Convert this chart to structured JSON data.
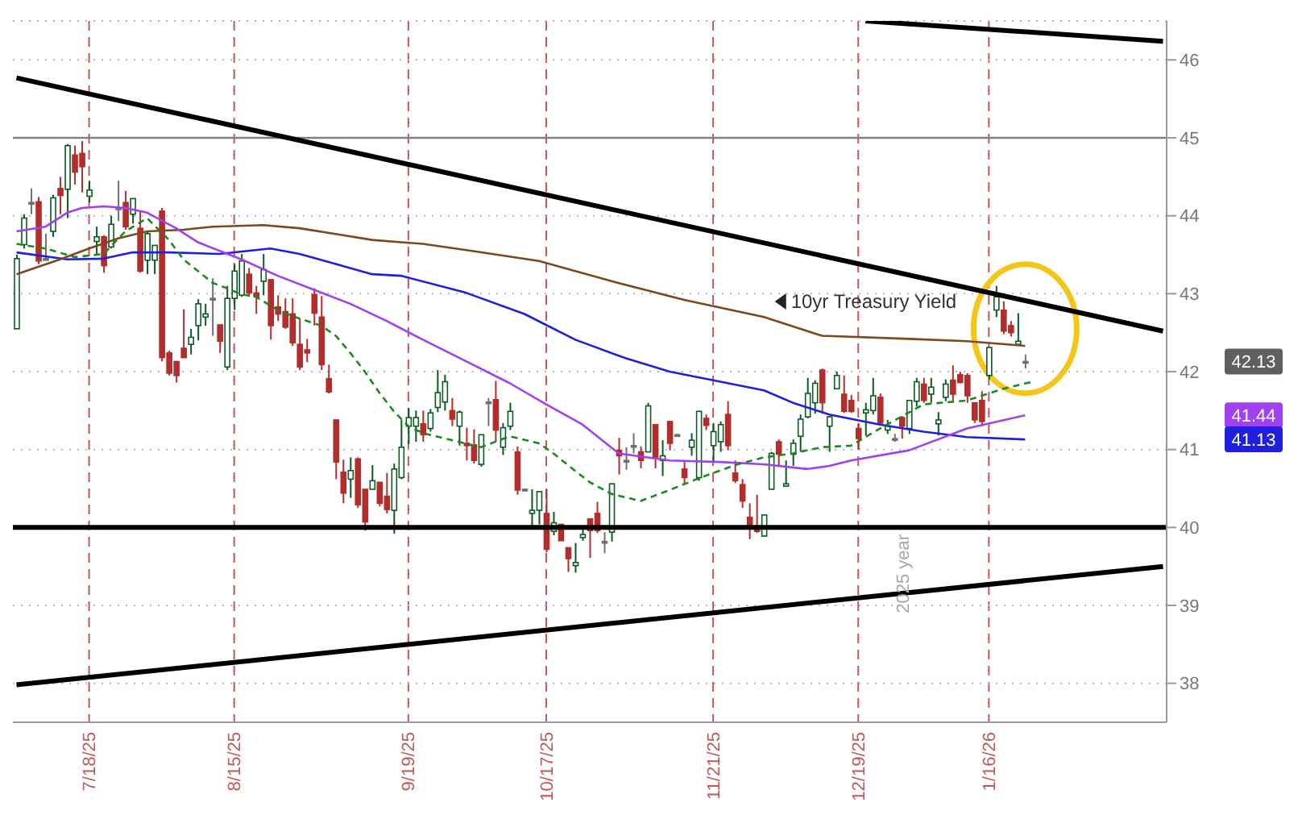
{
  "chart_data": {
    "type": "candlestick",
    "categories": [
      null,
      null,
      null,
      null,
      null,
      null,
      null,
      null,
      null,
      null,
      "7/18/25",
      null,
      null,
      null,
      null,
      null,
      null,
      null,
      null,
      null,
      null,
      null,
      null,
      null,
      null,
      null,
      null,
      null,
      null,
      null,
      "8/15/25",
      null,
      null,
      null,
      null,
      null,
      null,
      null,
      null,
      null,
      null,
      null,
      null,
      null,
      null,
      null,
      null,
      null,
      null,
      null,
      null,
      null,
      null,
      null,
      "9/19/25",
      null,
      null,
      null,
      null,
      null,
      null,
      null,
      null,
      null,
      null,
      null,
      null,
      null,
      null,
      null,
      null,
      null,
      null,
      "10/17/25",
      null,
      null,
      null,
      null,
      null,
      null,
      null,
      null,
      null,
      null,
      null,
      null,
      null,
      null,
      null,
      null,
      null,
      null,
      null,
      null,
      null,
      null,
      "11/21/25",
      null,
      null,
      null,
      null,
      null,
      null,
      null,
      null,
      null,
      null,
      null,
      null,
      null,
      null,
      null,
      null,
      null,
      null,
      null,
      "12/19/25",
      null,
      null,
      null,
      null,
      null,
      null,
      null,
      null,
      null,
      null,
      null,
      null,
      null,
      null,
      null,
      null,
      null,
      "1/16/26",
      null,
      null,
      null,
      null,
      null,
      null,
      null,
      null,
      null,
      null,
      null,
      null,
      null,
      null,
      null,
      null,
      null,
      null,
      null,
      null,
      null,
      null,
      null,
      null
    ],
    "ohlc": [
      [
        42.55,
        43.5,
        42.55,
        43.45
      ],
      [
        43.63,
        44.02,
        43.58,
        43.97
      ],
      [
        44.17,
        44.35,
        44.02,
        44.17
      ],
      [
        44.18,
        44.24,
        43.38,
        43.42
      ],
      [
        43.45,
        43.77,
        43.44,
        43.45
      ],
      [
        43.8,
        44.27,
        43.73,
        44.23
      ],
      [
        44.35,
        44.5,
        44.02,
        44.26
      ],
      [
        44.34,
        44.92,
        43.97,
        44.9
      ],
      [
        44.78,
        44.9,
        44.4,
        44.56
      ],
      [
        44.8,
        44.96,
        44.3,
        44.63
      ],
      [
        44.25,
        44.45,
        44.17,
        44.33
      ],
      [
        43.67,
        43.86,
        43.51,
        43.73
      ],
      [
        43.73,
        43.75,
        43.27,
        43.36
      ],
      [
        43.6,
        44.0,
        43.58,
        43.89
      ],
      [
        44.1,
        44.45,
        43.93,
        44.1
      ],
      [
        44.17,
        44.32,
        43.82,
        43.86
      ],
      [
        44.02,
        44.22,
        43.9,
        44.22
      ],
      [
        43.84,
        44.05,
        43.27,
        43.29
      ],
      [
        43.43,
        43.8,
        43.25,
        43.77
      ],
      [
        43.43,
        43.62,
        43.25,
        43.62
      ],
      [
        44.06,
        44.1,
        42.13,
        42.18
      ],
      [
        42.24,
        42.27,
        41.95,
        41.98
      ],
      [
        42.13,
        42.13,
        41.86,
        41.95
      ],
      [
        42.3,
        42.8,
        42.18,
        42.18
      ],
      [
        42.35,
        42.55,
        42.22,
        42.44
      ],
      [
        42.59,
        42.93,
        42.4,
        42.87
      ],
      [
        42.7,
        42.87,
        42.59,
        42.74
      ],
      [
        42.94,
        43.2,
        42.46,
        42.94
      ],
      [
        42.6,
        42.6,
        42.24,
        42.39
      ],
      [
        42.06,
        43.1,
        42.02,
        42.94
      ],
      [
        42.94,
        43.38,
        42.79,
        43.29
      ],
      [
        42.98,
        43.51,
        42.96,
        43.42
      ],
      [
        43.25,
        43.33,
        42.96,
        43.01
      ],
      [
        43.01,
        43.1,
        42.74,
        42.96
      ],
      [
        43.16,
        43.51,
        42.98,
        43.31
      ],
      [
        43.18,
        43.18,
        42.41,
        42.59
      ],
      [
        42.83,
        42.98,
        42.65,
        42.74
      ],
      [
        42.77,
        42.94,
        42.55,
        42.57
      ],
      [
        42.74,
        42.94,
        42.33,
        42.37
      ],
      [
        42.35,
        42.68,
        42.02,
        42.06
      ],
      [
        42.28,
        42.42,
        42.12,
        42.24
      ],
      [
        42.99,
        43.07,
        42.59,
        42.75
      ],
      [
        42.7,
        42.97,
        42.02,
        42.09
      ],
      [
        41.91,
        42.09,
        41.72,
        41.74
      ],
      [
        41.38,
        41.38,
        40.62,
        40.84
      ],
      [
        40.71,
        40.87,
        40.31,
        40.44
      ],
      [
        40.62,
        40.9,
        40.38,
        40.73
      ],
      [
        40.88,
        40.9,
        40.25,
        40.29
      ],
      [
        40.49,
        40.49,
        39.96,
        40.07
      ],
      [
        40.49,
        40.8,
        40.49,
        40.6
      ],
      [
        40.58,
        40.58,
        40.27,
        40.31
      ],
      [
        40.4,
        40.7,
        40.18,
        40.23
      ],
      [
        40.22,
        40.82,
        39.92,
        40.75
      ],
      [
        40.64,
        41.38,
        40.62,
        41.03
      ],
      [
        41.3,
        41.53,
        41.07,
        41.41
      ],
      [
        41.3,
        41.5,
        41.1,
        41.41
      ],
      [
        41.33,
        41.5,
        41.1,
        41.19
      ],
      [
        41.27,
        41.52,
        41.23,
        41.47
      ],
      [
        41.54,
        42.02,
        41.48,
        41.73
      ],
      [
        41.61,
        41.96,
        41.5,
        41.87
      ],
      [
        41.5,
        41.66,
        41.3,
        41.39
      ],
      [
        41.3,
        41.5,
        41.05,
        41.48
      ],
      [
        41.08,
        41.28,
        40.86,
        41.05
      ],
      [
        41.06,
        41.26,
        40.82,
        40.86
      ],
      [
        40.81,
        41.19,
        40.78,
        41.19
      ],
      [
        41.61,
        41.66,
        41.3,
        41.61
      ],
      [
        41.64,
        41.88,
        41.1,
        41.25
      ],
      [
        41.03,
        41.34,
        40.93,
        41.28
      ],
      [
        41.3,
        41.6,
        41.25,
        41.49
      ],
      [
        40.97,
        41.04,
        40.42,
        40.48
      ],
      [
        40.49,
        40.5,
        40.48,
        40.49
      ],
      [
        40.18,
        40.49,
        40.0,
        40.22
      ],
      [
        40.22,
        40.46,
        40.04,
        40.46
      ],
      [
        40.18,
        40.49,
        39.68,
        39.72
      ],
      [
        39.95,
        40.2,
        39.9,
        40.06
      ],
      [
        40.04,
        40.04,
        39.83,
        39.83
      ],
      [
        39.74,
        39.74,
        39.43,
        39.6
      ],
      [
        39.51,
        39.8,
        39.42,
        39.55
      ],
      [
        39.87,
        40.02,
        39.83,
        39.91
      ],
      [
        40.11,
        40.11,
        39.61,
        39.96
      ],
      [
        40.18,
        40.33,
        39.93,
        39.96
      ],
      [
        39.82,
        39.94,
        39.67,
        39.82
      ],
      [
        39.94,
        40.56,
        39.82,
        40.56
      ],
      [
        40.99,
        41.15,
        40.68,
        40.92
      ],
      [
        40.86,
        41.03,
        40.74,
        40.86
      ],
      [
        41.05,
        41.21,
        40.95,
        41.05
      ],
      [
        40.97,
        41.04,
        40.76,
        40.86
      ],
      [
        40.97,
        41.6,
        40.97,
        41.56
      ],
      [
        41.32,
        41.32,
        40.76,
        40.9
      ],
      [
        40.86,
        41.12,
        40.66,
        40.92
      ],
      [
        41.36,
        41.36,
        40.99,
        41.08
      ],
      [
        41.19,
        41.2,
        41.18,
        41.19
      ],
      [
        40.75,
        40.84,
        40.56,
        40.64
      ],
      [
        41.03,
        41.21,
        40.92,
        41.12
      ],
      [
        40.64,
        41.49,
        40.6,
        41.49
      ],
      [
        41.4,
        41.45,
        41.25,
        41.31
      ],
      [
        41.05,
        41.34,
        40.84,
        41.23
      ],
      [
        41.1,
        41.36,
        40.97,
        41.32
      ],
      [
        41.45,
        41.62,
        40.99,
        41.05
      ],
      [
        40.7,
        40.86,
        40.57,
        40.6
      ],
      [
        40.55,
        40.62,
        40.25,
        40.34
      ],
      [
        40.13,
        40.31,
        39.85,
        40.02
      ],
      [
        40.02,
        40.42,
        39.93,
        39.95
      ],
      [
        39.89,
        40.16,
        39.88,
        40.16
      ],
      [
        40.49,
        40.97,
        40.49,
        40.95
      ],
      [
        41.1,
        41.13,
        40.8,
        40.94
      ],
      [
        40.53,
        40.86,
        40.52,
        40.56
      ],
      [
        40.94,
        41.13,
        40.79,
        41.08
      ],
      [
        41.17,
        41.45,
        40.97,
        41.39
      ],
      [
        41.42,
        41.92,
        41.4,
        41.72
      ],
      [
        41.6,
        41.89,
        41.46,
        41.85
      ],
      [
        42.02,
        42.04,
        41.46,
        41.6
      ],
      [
        41.3,
        41.43,
        40.97,
        41.42
      ],
      [
        41.78,
        42.0,
        41.78,
        41.95
      ],
      [
        41.71,
        41.95,
        41.47,
        41.49
      ],
      [
        41.63,
        41.7,
        41.47,
        41.49
      ],
      [
        41.27,
        41.34,
        41.0,
        41.14
      ],
      [
        41.47,
        41.6,
        41.18,
        41.51
      ],
      [
        41.5,
        41.92,
        41.45,
        41.69
      ],
      [
        41.67,
        41.72,
        41.32,
        41.34
      ],
      [
        41.25,
        41.38,
        41.2,
        41.3
      ],
      [
        41.14,
        41.2,
        41.1,
        41.14
      ],
      [
        41.41,
        41.43,
        41.14,
        41.3
      ],
      [
        41.27,
        41.63,
        41.2,
        41.63
      ],
      [
        41.62,
        41.92,
        41.55,
        41.87
      ],
      [
        41.84,
        41.92,
        41.6,
        41.63
      ],
      [
        41.71,
        41.92,
        41.6,
        41.8
      ],
      [
        41.33,
        41.48,
        41.18,
        41.38
      ],
      [
        41.67,
        41.9,
        41.62,
        41.84
      ],
      [
        41.89,
        42.08,
        41.62,
        41.71
      ],
      [
        41.96,
        42.0,
        41.85,
        41.86
      ],
      [
        41.95,
        41.98,
        41.6,
        41.69
      ],
      [
        41.6,
        41.6,
        41.34,
        41.38
      ],
      [
        41.63,
        41.75,
        41.3,
        41.36
      ],
      [
        41.95,
        42.31,
        41.9,
        42.31
      ],
      [
        42.79,
        43.1,
        42.7,
        42.96
      ],
      [
        42.79,
        42.9,
        42.48,
        42.52
      ],
      [
        42.59,
        42.65,
        42.45,
        42.5
      ],
      [
        42.35,
        42.75,
        42.35,
        42.39
      ],
      [
        42.13,
        42.22,
        42.04,
        42.13
      ],
      null,
      null,
      null,
      null,
      null,
      null,
      null,
      null,
      null,
      null,
      null,
      null,
      null,
      null,
      null,
      null,
      null,
      null,
      null
    ],
    "series": [
      {
        "type": "line",
        "color": "#1f1fe0",
        "values": [
          43.53,
          null,
          null,
          null,
          null,
          null,
          null,
          43.44,
          null,
          null,
          null,
          null,
          43.45,
          null,
          null,
          null,
          43.53,
          null,
          null,
          null,
          null,
          43.53,
          null,
          null,
          null,
          null,
          null,
          null,
          43.51,
          null,
          null,
          null,
          null,
          null,
          null,
          43.58,
          null,
          null,
          null,
          43.51,
          null,
          null,
          null,
          null,
          43.38,
          null,
          null,
          null,
          null,
          43.25,
          null,
          null,
          null,
          43.23,
          null,
          null,
          null,
          null,
          null,
          null,
          null,
          null,
          43.01,
          null,
          null,
          null,
          null,
          null,
          null,
          null,
          42.74,
          null,
          null,
          null,
          null,
          null,
          null,
          42.41,
          null,
          null,
          null,
          null,
          null,
          null,
          42.17,
          null,
          null,
          null,
          null,
          null,
          42.0,
          null,
          null,
          null,
          null,
          null,
          null,
          41.87,
          null,
          null,
          null,
          null,
          null,
          41.76,
          null,
          null,
          null,
          41.6,
          null,
          null,
          null,
          null,
          41.45,
          null,
          null,
          null,
          null,
          null,
          null,
          41.32,
          null,
          null,
          null,
          null,
          null,
          41.23,
          null,
          null,
          null,
          null,
          null,
          41.16,
          null,
          null,
          null,
          null,
          null,
          null,
          null,
          41.13,
          null,
          null,
          null,
          null,
          null,
          null,
          null,
          null,
          null,
          null,
          null,
          null,
          null,
          null,
          null,
          null,
          null,
          null,
          null
        ]
      },
      {
        "type": "line",
        "color": "#7a4a1e",
        "values": [
          43.25,
          null,
          null,
          null,
          null,
          null,
          43.44,
          null,
          null,
          null,
          43.58,
          null,
          null,
          null,
          43.71,
          null,
          null,
          null,
          43.8,
          null,
          null,
          null,
          null,
          43.82,
          null,
          null,
          null,
          43.86,
          null,
          null,
          null,
          null,
          null,
          null,
          43.88,
          null,
          null,
          null,
          null,
          43.84,
          null,
          null,
          null,
          null,
          null,
          43.75,
          null,
          null,
          null,
          43.69,
          null,
          null,
          null,
          43.66,
          null,
          null,
          43.64,
          null,
          null,
          null,
          null,
          null,
          43.56,
          null,
          null,
          null,
          null,
          null,
          null,
          null,
          null,
          null,
          43.42,
          null,
          null,
          null,
          null,
          null,
          null,
          null,
          null,
          null,
          43.16,
          null,
          null,
          null,
          null,
          null,
          null,
          null,
          null,
          null,
          42.92,
          null,
          null,
          null,
          null,
          null,
          null,
          null,
          null,
          null,
          null,
          42.7,
          null,
          null,
          null,
          null,
          null,
          null,
          null,
          42.46,
          null,
          null,
          null,
          null,
          null,
          null,
          null,
          null,
          null,
          null,
          null,
          42.42,
          null,
          null,
          null,
          null,
          null,
          null,
          null,
          42.39,
          null,
          null,
          null,
          null,
          null,
          null,
          null,
          42.33,
          null,
          null,
          null,
          null,
          null,
          null,
          null,
          null,
          null,
          null,
          null,
          null,
          null,
          null,
          null,
          null,
          null,
          null,
          null
        ]
      },
      {
        "type": "line",
        "color": "#a040f0",
        "values": [
          43.8,
          null,
          null,
          null,
          43.86,
          null,
          null,
          44.04,
          null,
          44.1,
          null,
          null,
          44.12,
          null,
          null,
          44.1,
          null,
          null,
          44.04,
          null,
          null,
          null,
          43.84,
          null,
          null,
          43.66,
          null,
          null,
          43.55,
          null,
          null,
          43.44,
          null,
          null,
          null,
          null,
          43.23,
          null,
          null,
          null,
          null,
          43.05,
          null,
          null,
          null,
          null,
          42.87,
          null,
          null,
          null,
          null,
          42.65,
          null,
          null,
          null,
          null,
          42.41,
          null,
          null,
          null,
          null,
          null,
          42.13,
          null,
          null,
          null,
          null,
          null,
          41.85,
          null,
          null,
          null,
          null,
          41.58,
          null,
          null,
          null,
          null,
          41.32,
          null,
          null,
          null,
          null,
          40.95,
          null,
          null,
          null,
          null,
          null,
          null,
          40.86,
          null,
          null,
          null,
          null,
          null,
          null,
          40.84,
          null,
          null,
          null,
          null,
          null,
          40.81,
          null,
          null,
          null,
          null,
          null,
          40.75,
          null,
          null,
          40.79,
          null,
          null,
          40.86,
          null,
          null,
          null,
          null,
          null,
          null,
          null,
          40.99,
          null,
          null,
          null,
          null,
          null,
          null,
          null,
          41.27,
          null,
          null,
          null,
          null,
          null,
          null,
          null,
          41.44,
          null,
          null,
          null,
          null,
          null,
          null,
          null,
          null,
          null,
          null,
          null,
          null,
          null,
          null,
          null,
          null,
          null,
          null,
          null
        ]
      },
      {
        "type": "line",
        "color": "#1a8a1a",
        "line_style": "dashed",
        "values": [
          43.64,
          null,
          null,
          null,
          43.58,
          null,
          null,
          null,
          43.47,
          null,
          null,
          null,
          43.51,
          null,
          null,
          43.8,
          null,
          null,
          43.97,
          null,
          null,
          43.69,
          null,
          43.44,
          null,
          null,
          null,
          43.14,
          null,
          43.07,
          null,
          42.99,
          null,
          42.96,
          null,
          null,
          42.79,
          null,
          null,
          42.68,
          null,
          null,
          42.59,
          null,
          42.46,
          null,
          42.24,
          null,
          42.0,
          null,
          41.73,
          null,
          41.49,
          null,
          41.3,
          null,
          41.21,
          null,
          null,
          null,
          41.12,
          null,
          null,
          null,
          41.03,
          null,
          null,
          null,
          41.17,
          null,
          null,
          null,
          41.08,
          null,
          40.95,
          null,
          40.8,
          null,
          null,
          40.58,
          null,
          null,
          40.43,
          null,
          null,
          null,
          40.34,
          null,
          null,
          null,
          40.48,
          null,
          null,
          null,
          40.63,
          null,
          null,
          null,
          null,
          40.8,
          null,
          null,
          null,
          40.9,
          null,
          null,
          null,
          40.95,
          null,
          null,
          null,
          41.03,
          null,
          null,
          null,
          41.05,
          null,
          null,
          null,
          41.27,
          null,
          null,
          null,
          null,
          null,
          41.58,
          null,
          null,
          null,
          null,
          null,
          41.63,
          null,
          null,
          null,
          null,
          41.78,
          null,
          null,
          null,
          41.87,
          null,
          null,
          null,
          null,
          null,
          null,
          null,
          null,
          null,
          null,
          null,
          null,
          null,
          null,
          null,
          null,
          null,
          null
        ]
      },
      {
        "type": "line",
        "color": "#000000",
        "values": [
          45.77,
          null,
          null,
          null,
          null,
          null,
          null,
          null,
          null,
          null,
          null,
          null,
          null,
          null,
          null,
          null,
          null,
          null,
          null,
          null,
          null,
          null,
          null,
          null,
          null,
          null,
          null,
          null,
          null,
          null,
          null,
          null,
          null,
          null,
          null,
          null,
          null,
          null,
          null,
          null,
          null,
          null,
          null,
          null,
          null,
          null,
          null,
          null,
          null,
          null,
          null,
          null,
          null,
          null,
          null,
          null,
          null,
          null,
          null,
          null,
          null,
          null,
          null,
          null,
          null,
          null,
          null,
          null,
          null,
          null,
          null,
          null,
          null,
          null,
          null,
          null,
          null,
          null,
          null,
          null,
          null,
          null,
          null,
          null,
          null,
          null,
          null,
          null,
          null,
          null,
          null,
          null,
          null,
          null,
          null,
          null,
          null,
          null,
          null,
          null,
          null,
          null,
          null,
          null,
          null,
          null,
          null,
          null,
          null,
          null,
          null,
          null,
          null,
          null,
          null,
          null,
          null,
          null,
          null,
          null,
          null,
          null,
          null,
          null,
          null,
          null,
          null,
          null,
          null,
          null,
          null,
          null,
          null,
          null,
          null,
          null,
          null,
          null,
          null,
          null,
          null,
          null,
          null,
          null,
          null,
          null,
          null,
          null,
          null,
          null,
          null,
          null,
          null,
          null,
          null,
          null,
          null,
          null,
          42.52
        ]
      },
      {
        "type": "line",
        "color": "#000000",
        "values": [
          null,
          null,
          null,
          null,
          null,
          null,
          null,
          null,
          null,
          null,
          null,
          null,
          null,
          null,
          null,
          null,
          null,
          null,
          null,
          null,
          null,
          null,
          null,
          null,
          null,
          null,
          null,
          null,
          null,
          null,
          null,
          null,
          null,
          null,
          null,
          null,
          null,
          null,
          null,
          null,
          null,
          null,
          null,
          null,
          null,
          null,
          null,
          null,
          null,
          null,
          null,
          null,
          null,
          null,
          null,
          null,
          null,
          null,
          null,
          null,
          null,
          null,
          null,
          null,
          null,
          null,
          null,
          null,
          null,
          null,
          null,
          null,
          null,
          null,
          null,
          null,
          null,
          null,
          null,
          null,
          null,
          null,
          null,
          null,
          null,
          null,
          null,
          null,
          null,
          null,
          null,
          null,
          null,
          null,
          null,
          null,
          null,
          null,
          null,
          null,
          null,
          null,
          null,
          null,
          null,
          null,
          null,
          null,
          null,
          null,
          null,
          null,
          null,
          null,
          null,
          null,
          null,
          46.5,
          null,
          null,
          null,
          null,
          null,
          null,
          null,
          null,
          null,
          null,
          null,
          null,
          null,
          null,
          null,
          null,
          null,
          null,
          null,
          null,
          null,
          null,
          null,
          null,
          null,
          null,
          null,
          null,
          null,
          null,
          null,
          null,
          null,
          null,
          null,
          null,
          null,
          null,
          null,
          null,
          46.24
        ]
      },
      {
        "type": "line",
        "color": "#000000",
        "values": [
          37.98,
          null,
          null,
          null,
          null,
          null,
          null,
          null,
          null,
          null,
          null,
          null,
          null,
          null,
          null,
          null,
          null,
          null,
          null,
          null,
          null,
          null,
          null,
          null,
          null,
          null,
          null,
          null,
          null,
          null,
          null,
          null,
          null,
          null,
          null,
          null,
          null,
          null,
          null,
          null,
          null,
          null,
          null,
          null,
          null,
          null,
          null,
          null,
          null,
          null,
          null,
          null,
          null,
          null,
          null,
          null,
          null,
          null,
          null,
          null,
          null,
          null,
          null,
          null,
          null,
          null,
          null,
          null,
          null,
          null,
          null,
          null,
          null,
          null,
          null,
          null,
          null,
          null,
          null,
          null,
          null,
          null,
          null,
          null,
          null,
          null,
          null,
          null,
          null,
          null,
          null,
          null,
          null,
          null,
          null,
          null,
          null,
          null,
          null,
          null,
          null,
          null,
          null,
          null,
          null,
          null,
          null,
          null,
          null,
          null,
          null,
          null,
          null,
          null,
          null,
          null,
          null,
          null,
          null,
          null,
          null,
          null,
          null,
          null,
          null,
          null,
          null,
          null,
          null,
          null,
          null,
          null,
          null,
          null,
          null,
          null,
          null,
          null,
          null,
          null,
          null,
          null,
          null,
          null,
          null,
          null,
          null,
          null,
          null,
          null,
          null,
          null,
          null,
          null,
          null,
          null,
          null,
          null,
          39.5
        ]
      }
    ],
    "ylim": [
      37.5,
      46.5
    ],
    "yticks": [
      38,
      39,
      40,
      41,
      42,
      43,
      44,
      45,
      46
    ],
    "grid": true,
    "ref_lines": [
      {
        "axis": "y",
        "value": 45,
        "color": "#808080"
      },
      {
        "axis": "y",
        "value": 40,
        "color": "#000000"
      }
    ],
    "annotations": [
      "10yr Treasury Yield",
      "2025 year",
      "42.13",
      "41.44",
      "41.13"
    ]
  }
}
